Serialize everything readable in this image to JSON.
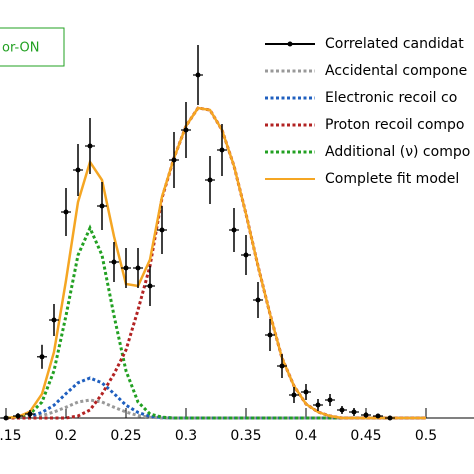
{
  "chart_data": {
    "type": "line",
    "annotation": "or-ON",
    "xlim": [
      0.145,
      0.54
    ],
    "ylim": [
      0,
      104.5
    ],
    "xticks": [
      0.15,
      0.2,
      0.25,
      0.3,
      0.35,
      0.4,
      0.45,
      0.5
    ],
    "series": [
      {
        "name": "Correlated candidat",
        "color": "#000000",
        "style": "errorbar",
        "x": [
          0.15,
          0.16,
          0.17,
          0.18,
          0.19,
          0.2,
          0.21,
          0.22,
          0.23,
          0.24,
          0.25,
          0.26,
          0.27,
          0.28,
          0.29,
          0.3,
          0.31,
          0.32,
          0.33,
          0.34,
          0.35,
          0.36,
          0.37,
          0.38,
          0.39,
          0.4,
          0.41,
          0.42,
          0.43,
          0.44,
          0.45,
          0.46,
          0.47
        ],
        "values": [
          0,
          0.5,
          1,
          15.3,
          24.5,
          51.5,
          62,
          68,
          53,
          39,
          37.5,
          37.5,
          33,
          47,
          64.5,
          72,
          85.75,
          59.5,
          67,
          47,
          40.75,
          29.5,
          20.75,
          13,
          5.75,
          6.5,
          3.25,
          4.5,
          2,
          1.5,
          0.75,
          0.5,
          0
        ],
        "errors": [
          0,
          0.7,
          1,
          3,
          4,
          6,
          6.5,
          7,
          6,
          5,
          5,
          5,
          5,
          6,
          7,
          7,
          7.5,
          6,
          6.5,
          5.5,
          5,
          4.5,
          4,
          3,
          2,
          2,
          1.5,
          1.5,
          1,
          1,
          0.7,
          0.5,
          0
        ]
      },
      {
        "name": "Accidental compone",
        "color": "#999999",
        "style": "dotted",
        "x": [
          0.15,
          0.16,
          0.17,
          0.18,
          0.19,
          0.2,
          0.21,
          0.22,
          0.23,
          0.24,
          0.25,
          0.26,
          0.27,
          0.28,
          0.29,
          0.3,
          0.31,
          0.32,
          0.33,
          0.34,
          0.35,
          0.36,
          0.37,
          0.38,
          0.39,
          0.4,
          0.41,
          0.42,
          0.43,
          0.44,
          0.45,
          0.46,
          0.47,
          0.48,
          0.49,
          0.5
        ],
        "values": [
          0,
          0,
          0.2,
          0.6,
          1.5,
          2.7,
          4.0,
          4.5,
          4.0,
          2.7,
          1.5,
          0.6,
          0.2,
          0,
          0,
          0,
          0,
          0,
          0,
          0,
          0,
          0,
          0,
          0,
          0,
          0,
          0,
          0,
          0,
          0,
          0,
          0,
          0,
          0,
          0,
          0
        ]
      },
      {
        "name": "Electronic recoil co",
        "color": "#1f5fbf",
        "style": "dotted",
        "x": [
          0.15,
          0.16,
          0.17,
          0.18,
          0.19,
          0.2,
          0.21,
          0.22,
          0.23,
          0.24,
          0.25,
          0.26,
          0.27,
          0.28,
          0.29,
          0.3,
          0.31,
          0.32,
          0.33,
          0.34,
          0.35,
          0.36,
          0.37,
          0.38,
          0.39,
          0.4,
          0.41,
          0.42,
          0.43,
          0.44,
          0.45,
          0.46,
          0.47,
          0.48,
          0.49,
          0.5
        ],
        "values": [
          0,
          0.1,
          0.4,
          1.4,
          3.2,
          6.1,
          8.8,
          10,
          8.8,
          6.1,
          3.2,
          1.4,
          0.4,
          0.1,
          0,
          0,
          0,
          0,
          0,
          0,
          0,
          0,
          0,
          0,
          0,
          0,
          0,
          0,
          0,
          0,
          0,
          0,
          0,
          0,
          0,
          0
        ]
      },
      {
        "name": "Proton recoil compo",
        "color": "#b22222",
        "style": "dotted",
        "x": [
          0.15,
          0.16,
          0.17,
          0.18,
          0.19,
          0.2,
          0.21,
          0.22,
          0.23,
          0.24,
          0.25,
          0.26,
          0.27,
          0.28,
          0.29,
          0.3,
          0.31,
          0.32,
          0.33,
          0.34,
          0.35,
          0.36,
          0.37,
          0.38,
          0.39,
          0.4,
          0.41,
          0.42,
          0.43,
          0.44,
          0.45,
          0.46,
          0.47,
          0.48,
          0.49,
          0.5
        ],
        "values": [
          0,
          0,
          0,
          0,
          0,
          0,
          0.5,
          2,
          6,
          11,
          17,
          27,
          38,
          55,
          65,
          73,
          77.5,
          77,
          72,
          63,
          51,
          38,
          26,
          15,
          8,
          3.5,
          1.5,
          0.5,
          0,
          0,
          0,
          0,
          0,
          0,
          0,
          0
        ]
      },
      {
        "name": "Additional (ν) compo",
        "color": "#22a022",
        "style": "dotted",
        "x": [
          0.15,
          0.16,
          0.17,
          0.18,
          0.19,
          0.2,
          0.21,
          0.22,
          0.23,
          0.24,
          0.25,
          0.26,
          0.27,
          0.28,
          0.29,
          0.3,
          0.31,
          0.32,
          0.33,
          0.34,
          0.35,
          0.36,
          0.37,
          0.38,
          0.39,
          0.4,
          0.41,
          0.42,
          0.43,
          0.44,
          0.45,
          0.46,
          0.47,
          0.48,
          0.49,
          0.5
        ],
        "values": [
          0,
          0.2,
          1.0,
          4.0,
          11.8,
          25.6,
          40.7,
          47.5,
          40.7,
          25.6,
          11.8,
          4.0,
          1.0,
          0.2,
          0,
          0,
          0,
          0,
          0,
          0,
          0,
          0,
          0,
          0,
          0,
          0,
          0,
          0,
          0,
          0,
          0,
          0,
          0,
          0,
          0,
          0
        ]
      },
      {
        "name": "Complete fit model",
        "color": "#f5a623",
        "style": "solid",
        "x": [
          0.15,
          0.16,
          0.17,
          0.18,
          0.19,
          0.2,
          0.21,
          0.22,
          0.23,
          0.24,
          0.25,
          0.26,
          0.27,
          0.28,
          0.29,
          0.3,
          0.31,
          0.32,
          0.33,
          0.34,
          0.35,
          0.36,
          0.37,
          0.38,
          0.39,
          0.4,
          0.41,
          0.42,
          0.43,
          0.44,
          0.45,
          0.46,
          0.47,
          0.48,
          0.49,
          0.5
        ],
        "values": [
          0,
          0.3,
          1.6,
          6.0,
          16.5,
          34.4,
          54.0,
          64.0,
          59.5,
          45.4,
          33.5,
          33.0,
          39.6,
          55.3,
          65,
          73,
          77.5,
          77,
          72,
          63,
          51,
          38,
          26,
          15,
          8,
          3.5,
          1.5,
          0.5,
          0,
          0,
          0,
          0,
          0,
          0,
          0,
          0
        ]
      }
    ]
  }
}
